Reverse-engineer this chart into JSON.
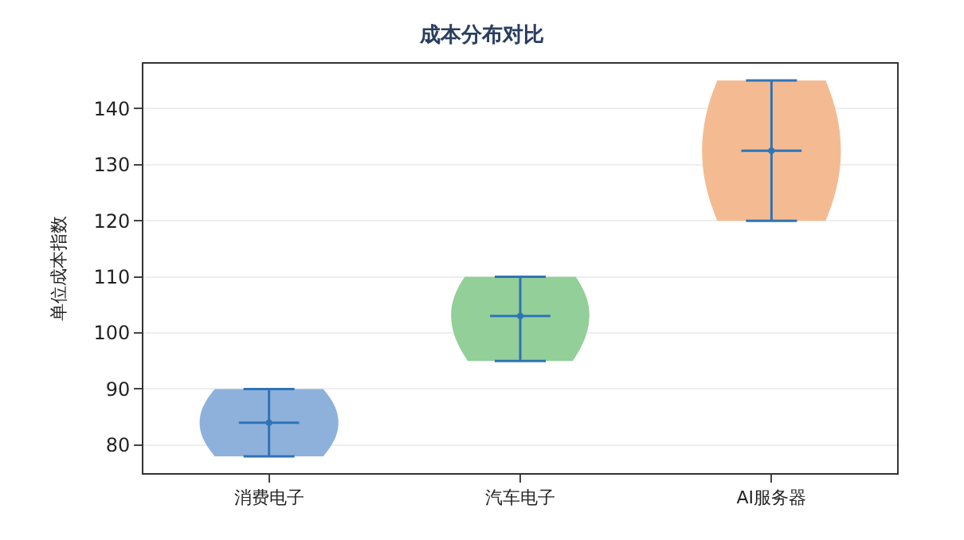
{
  "chart_data": {
    "type": "scatter",
    "title": "成本分布对比",
    "ylabel": "单位成本指数",
    "categories": [
      "消费电子",
      "汽车电子",
      "AI服务器"
    ],
    "series": [
      {
        "color": "#2f74b5",
        "values": [
          84,
          103,
          132.5
        ],
        "errors": [
          [
            78,
            90
          ],
          [
            95,
            110
          ],
          [
            120,
            145
          ]
        ]
      }
    ],
    "marker": "circle",
    "colors": [
      "#8eb1dc",
      "#93cf98",
      "#f4bb92"
    ],
    "ylim": [
      75,
      148
    ],
    "yticks": [
      80,
      90,
      100,
      110,
      120,
      130,
      140
    ],
    "grid": "y"
  }
}
